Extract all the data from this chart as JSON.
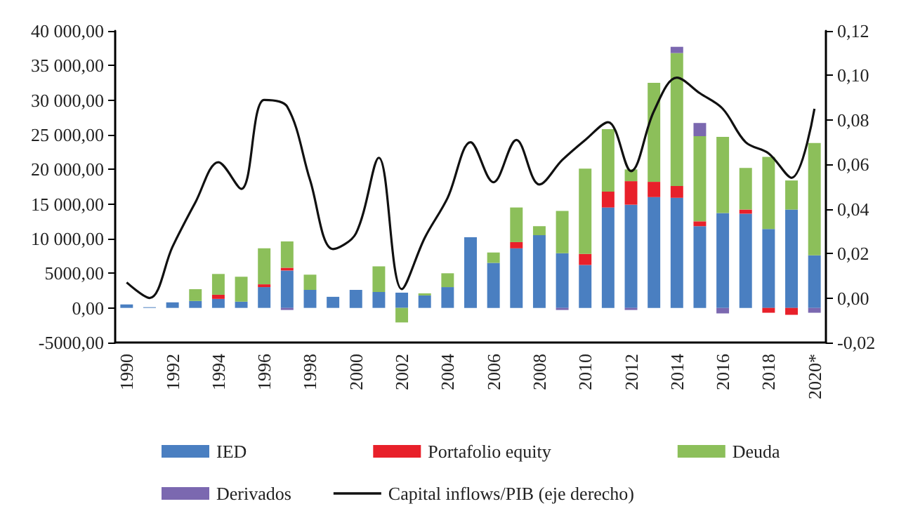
{
  "chart_data": {
    "type": "bar",
    "stacked": true,
    "categories": [
      "1990",
      null,
      "1992",
      null,
      "1994",
      null,
      "1996",
      null,
      "1998",
      null,
      "2000",
      null,
      "2002",
      null,
      "2004",
      null,
      "2006",
      null,
      "2008",
      null,
      "2010",
      null,
      "2012",
      null,
      "2014",
      null,
      "2016",
      null,
      "2018",
      null,
      "2020*"
    ],
    "series": [
      {
        "name": "IED",
        "color": "#4a7fc1",
        "values": [
          500,
          100,
          800,
          1000,
          1300,
          900,
          3000,
          5400,
          2600,
          1600,
          2600,
          2300,
          2200,
          1800,
          3000,
          10200,
          6500,
          8600,
          10500,
          7900,
          6200,
          14500,
          14900,
          16000,
          15900,
          11800,
          13700,
          13600,
          11400,
          14200,
          7600
        ]
      },
      {
        "name": "Portafolio equity",
        "color": "#e8202a",
        "values": [
          null,
          null,
          null,
          null,
          600,
          null,
          400,
          400,
          null,
          null,
          null,
          null,
          null,
          null,
          null,
          null,
          null,
          900,
          null,
          null,
          1600,
          2300,
          3400,
          2200,
          1700,
          700,
          null,
          600,
          -700,
          -1000,
          null
        ]
      },
      {
        "name": "Deuda",
        "color": "#8cbf5a",
        "values": [
          null,
          null,
          null,
          1700,
          3000,
          3600,
          5200,
          3800,
          2200,
          null,
          null,
          3700,
          -2100,
          300,
          2000,
          null,
          1500,
          5000,
          1300,
          6100,
          12300,
          9000,
          1700,
          14300,
          19200,
          12300,
          11000,
          6000,
          10400,
          4200,
          16200
        ]
      },
      {
        "name": "Derivados",
        "color": "#7b68b0",
        "values": [
          null,
          null,
          null,
          null,
          null,
          null,
          null,
          -300,
          null,
          null,
          null,
          null,
          null,
          null,
          null,
          null,
          null,
          null,
          null,
          -300,
          null,
          null,
          -300,
          null,
          900,
          1900,
          -800,
          null,
          null,
          null,
          -700
        ]
      },
      {
        "name": "Capital inflows/PIB (eje derecho)",
        "type": "line",
        "axis": "y2",
        "color": "#111111",
        "values": [
          0.007,
          0.0,
          0.023,
          0.043,
          0.061,
          0.049,
          0.089,
          0.086,
          0.053,
          0.022,
          0.029,
          0.063,
          0.004,
          0.027,
          0.045,
          0.07,
          0.052,
          0.071,
          0.051,
          0.062,
          0.071,
          0.079,
          0.057,
          0.084,
          0.099,
          0.092,
          0.085,
          0.07,
          0.065,
          0.054,
          0.085
        ]
      }
    ],
    "ylim": [
      -5000,
      40000
    ],
    "yticks": [
      {
        "value": -5000,
        "label": "-5000,00"
      },
      {
        "value": 0,
        "label": "0,00"
      },
      {
        "value": 5000,
        "label": "5000,00"
      },
      {
        "value": 10000,
        "label": "10 000,00"
      },
      {
        "value": 15000,
        "label": "15 000,00"
      },
      {
        "value": 20000,
        "label": "20 000,00"
      },
      {
        "value": 25000,
        "label": "25 000,00"
      },
      {
        "value": 30000,
        "label": "30 000,00"
      },
      {
        "value": 35000,
        "label": "35 000,00"
      },
      {
        "value": 40000,
        "label": "40 000,00"
      }
    ],
    "y2lim": [
      -0.02,
      0.12
    ],
    "y2ticks": [
      {
        "value": -0.02,
        "label": "-0,02"
      },
      {
        "value": 0,
        "label": "0,00"
      },
      {
        "value": 0.02,
        "label": "0,02"
      },
      {
        "value": 0.04,
        "label": "0,04"
      },
      {
        "value": 0.06,
        "label": "0,06"
      },
      {
        "value": 0.08,
        "label": "0,08"
      },
      {
        "value": 0.1,
        "label": "0,10"
      },
      {
        "value": 0.12,
        "label": "0,12"
      }
    ],
    "grid": false,
    "legend": "bottom",
    "marker": "none",
    "line_style": "solid"
  }
}
